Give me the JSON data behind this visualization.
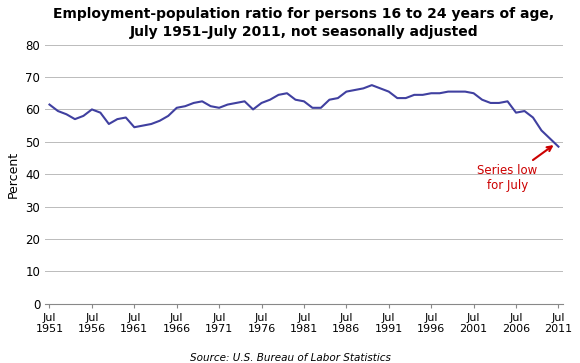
{
  "title": "Employment-population ratio for persons 16 to 24 years of age,\nJuly 1951–July 2011, not seasonally adjusted",
  "ylabel": "Percent",
  "source": "Source: U.S. Bureau of Labor Statistics",
  "line_color": "#4040A0",
  "annotation_color": "#CC0000",
  "annotation_text": "Series low\nfor July",
  "ylim": [
    0,
    80
  ],
  "yticks": [
    0,
    10,
    20,
    30,
    40,
    50,
    60,
    70,
    80
  ],
  "xtick_labels": [
    "Jul\n1951",
    "Jul\n1956",
    "Jul\n1961",
    "Jul\n1966",
    "Jul\n1971",
    "Jul\n1976",
    "Jul\n1981",
    "Jul\n1986",
    "Jul\n1991",
    "Jul\n1996",
    "Jul\n2001",
    "Jul\n2006",
    "Jul\n2011"
  ],
  "years": [
    1951,
    1952,
    1953,
    1954,
    1955,
    1956,
    1957,
    1958,
    1959,
    1960,
    1961,
    1962,
    1963,
    1964,
    1965,
    1966,
    1967,
    1968,
    1969,
    1970,
    1971,
    1972,
    1973,
    1974,
    1975,
    1976,
    1977,
    1978,
    1979,
    1980,
    1981,
    1982,
    1983,
    1984,
    1985,
    1986,
    1987,
    1988,
    1989,
    1990,
    1991,
    1992,
    1993,
    1994,
    1995,
    1996,
    1997,
    1998,
    1999,
    2000,
    2001,
    2002,
    2003,
    2004,
    2005,
    2006,
    2007,
    2008,
    2009,
    2010,
    2011
  ],
  "values": [
    61.5,
    59.5,
    58.5,
    57.0,
    58.0,
    60.0,
    59.0,
    55.5,
    57.0,
    57.5,
    54.5,
    55.0,
    55.5,
    56.5,
    58.0,
    60.5,
    61.0,
    62.0,
    62.5,
    61.0,
    60.5,
    61.5,
    62.0,
    62.5,
    60.0,
    62.0,
    63.0,
    64.5,
    65.0,
    63.0,
    62.5,
    60.5,
    60.5,
    63.0,
    63.5,
    65.5,
    66.0,
    66.5,
    67.5,
    66.5,
    65.5,
    63.5,
    63.5,
    64.5,
    64.5,
    65.0,
    65.0,
    65.5,
    65.5,
    65.5,
    65.0,
    63.0,
    62.0,
    62.0,
    62.5,
    59.0,
    59.5,
    57.5,
    53.5,
    51.0,
    48.5
  ],
  "xlim": [
    1950.5,
    2011.5
  ],
  "fig_width": 5.8,
  "fig_height": 3.63,
  "dpi": 100
}
